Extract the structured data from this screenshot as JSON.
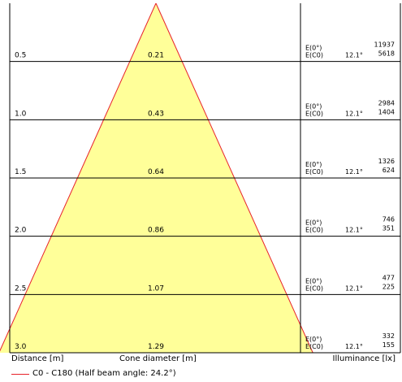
{
  "chart_data": {
    "type": "beam-cone",
    "axis_labels": {
      "distance": "Distance [m]",
      "cone": "Cone diameter [m]",
      "illuminance": "Illuminance [lx]"
    },
    "legend": "C0 - C180 (Half beam angle: 24.2°)",
    "half_beam_angle_deg": 24.2,
    "illum_labels": [
      "E(0°)",
      "E(C0)"
    ],
    "rows": [
      {
        "distance": "0.5",
        "diameter": "0.21",
        "angle": "12.1°",
        "e0": "11937",
        "ec0": "5618"
      },
      {
        "distance": "1.0",
        "diameter": "0.43",
        "angle": "12.1°",
        "e0": "2984",
        "ec0": "1404"
      },
      {
        "distance": "1.5",
        "diameter": "0.64",
        "angle": "12.1°",
        "e0": "1326",
        "ec0": "624"
      },
      {
        "distance": "2.0",
        "diameter": "0.86",
        "angle": "12.1°",
        "e0": "746",
        "ec0": "351"
      },
      {
        "distance": "2.5",
        "diameter": "1.07",
        "angle": "12.1°",
        "e0": "477",
        "ec0": "225"
      },
      {
        "distance": "3.0",
        "diameter": "1.29",
        "angle": "12.1°",
        "e0": "332",
        "ec0": "155"
      }
    ],
    "colors": {
      "cone_fill": "#ffff99",
      "cone_edge": "#e8222a",
      "grid": "#000000"
    }
  }
}
